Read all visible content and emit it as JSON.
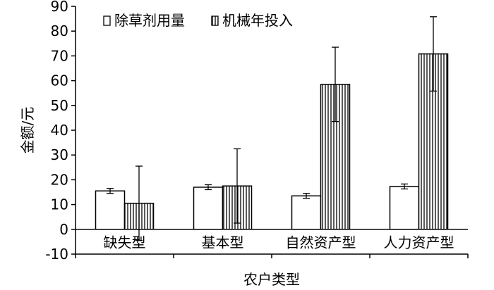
{
  "chart_data": {
    "type": "bar",
    "xlabel": "农户类型",
    "ylabel": "金额/元",
    "ylim": [
      -10,
      90
    ],
    "yticks": [
      -10,
      0,
      10,
      20,
      30,
      40,
      50,
      60,
      70,
      80,
      90
    ],
    "categories": [
      "缺失型",
      "基本型",
      "自然资产型",
      "人力资产型"
    ],
    "series": [
      {
        "name": "除草剂用量",
        "pattern": "solid-white",
        "values": [
          15.5,
          17,
          13.5,
          17.3
        ],
        "error": [
          1,
          1,
          1,
          1
        ]
      },
      {
        "name": "机械年投入",
        "pattern": "vertical-hatch",
        "values": [
          10.5,
          17.5,
          58.5,
          70.8
        ],
        "error": [
          15,
          15,
          15,
          15
        ]
      }
    ],
    "legend": "top-left",
    "grid": false
  }
}
